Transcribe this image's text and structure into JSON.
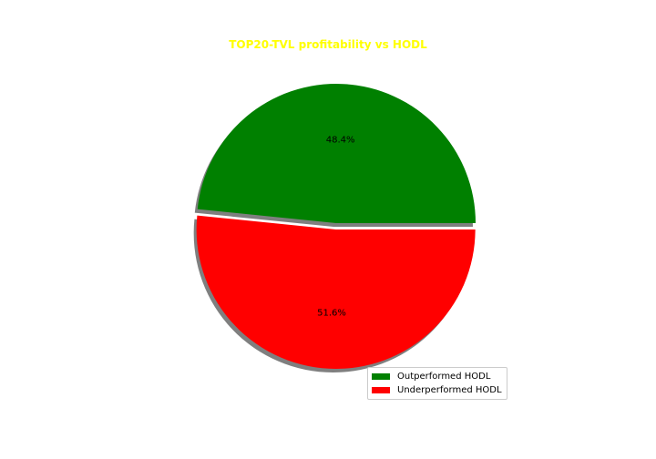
{
  "chart_data": {
    "type": "pie",
    "title": "TOP20-TVL profitability vs HODL",
    "title_color": "#ffff00",
    "slices": [
      {
        "label": "Outperformed HODL",
        "value": 48.4,
        "color": "#008000",
        "pct_label": "48.4%",
        "exploded": false
      },
      {
        "label": "Underperformed HODL",
        "value": 51.6,
        "color": "#ff0000",
        "pct_label": "51.6%",
        "exploded": true
      }
    ],
    "shadow": true,
    "legend_position": "lower-right"
  }
}
